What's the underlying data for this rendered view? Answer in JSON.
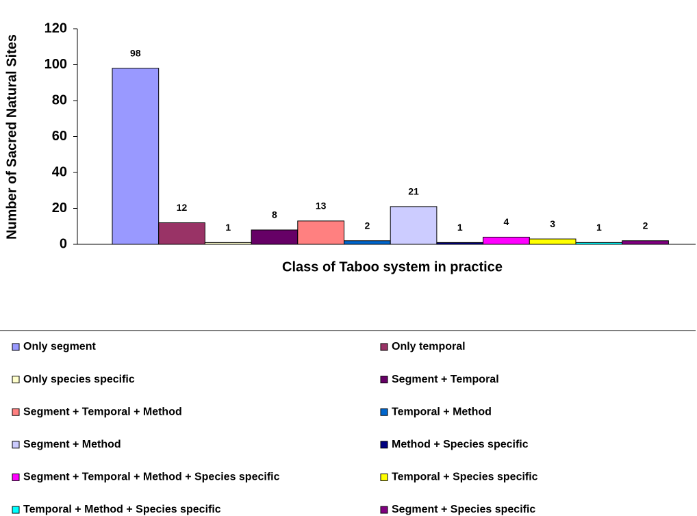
{
  "chart_data": {
    "type": "bar",
    "xlabel": "Class of Taboo system in practice",
    "ylabel": "Number of Sacred Natural Sites",
    "ylim": [
      0,
      120
    ],
    "yticks": [
      0,
      20,
      40,
      60,
      80,
      100,
      120
    ],
    "series": [
      {
        "name": "Only segment",
        "color": "#9999ff",
        "values": [
          98
        ]
      },
      {
        "name": "Only temporal",
        "color": "#993366",
        "values": [
          12
        ]
      },
      {
        "name": "Only species specific",
        "color": "#ffffcc",
        "values": [
          1
        ]
      },
      {
        "name": "Segment + Temporal",
        "color": "#660066",
        "values": [
          8
        ]
      },
      {
        "name": "Segment + Temporal + Method",
        "color": "#ff8080",
        "values": [
          13
        ]
      },
      {
        "name": "Temporal + Method",
        "color": "#0066cc",
        "values": [
          2
        ]
      },
      {
        "name": "Segment + Method",
        "color": "#ccccff",
        "values": [
          21
        ]
      },
      {
        "name": "Method + Species specific",
        "color": "#000080",
        "values": [
          1
        ]
      },
      {
        "name": "Segment + Temporal + Method + Species specific",
        "color": "#ff00ff",
        "values": [
          4
        ]
      },
      {
        "name": "Temporal + Species specific",
        "color": "#ffff00",
        "values": [
          3
        ]
      },
      {
        "name": "Temporal + Method + Species specific",
        "color": "#00ffff",
        "values": [
          1
        ]
      },
      {
        "name": "Segment + Species specific",
        "color": "#800080",
        "values": [
          2
        ]
      }
    ]
  }
}
